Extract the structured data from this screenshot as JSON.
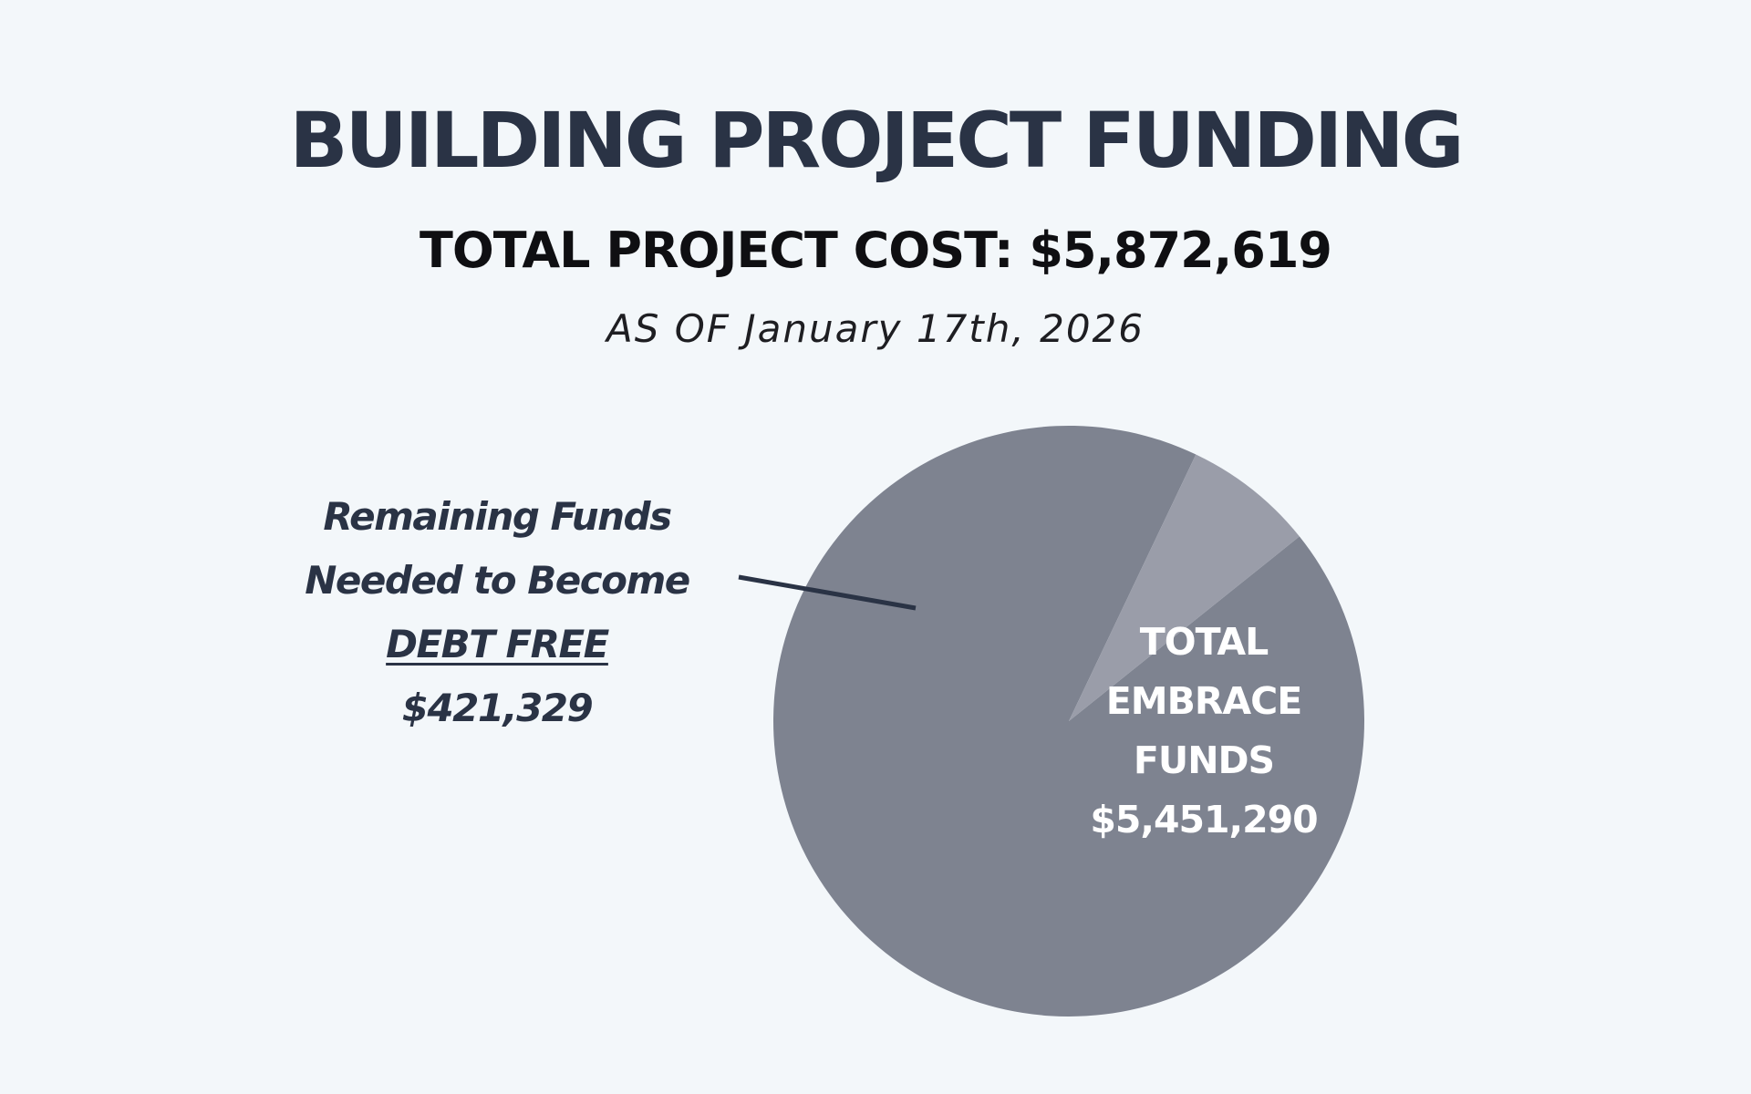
{
  "header": {
    "title": "BUILDING PROJECT FUNDING",
    "subtitle": "TOTAL PROJECT COST: $5,872,619",
    "as_of": "AS OF January 17th, 2026"
  },
  "chart_data": {
    "type": "pie",
    "total": 5872619,
    "slices": [
      {
        "name": "TOTAL EMBRACE FUNDS",
        "label_lines": [
          "TOTAL",
          "EMBRACE",
          "FUNDS"
        ],
        "value_label": "$5,451,290",
        "value": 5451290,
        "color": "#7e8390"
      },
      {
        "name": "Remaining Funds Needed to Become DEBT FREE",
        "label_lines": [
          "Remaining Funds",
          "Needed to Become",
          "DEBT FREE"
        ],
        "value_label": "$421,329",
        "value": 421329,
        "color": "#9a9da9"
      }
    ],
    "callout_color": "#2a3345"
  }
}
